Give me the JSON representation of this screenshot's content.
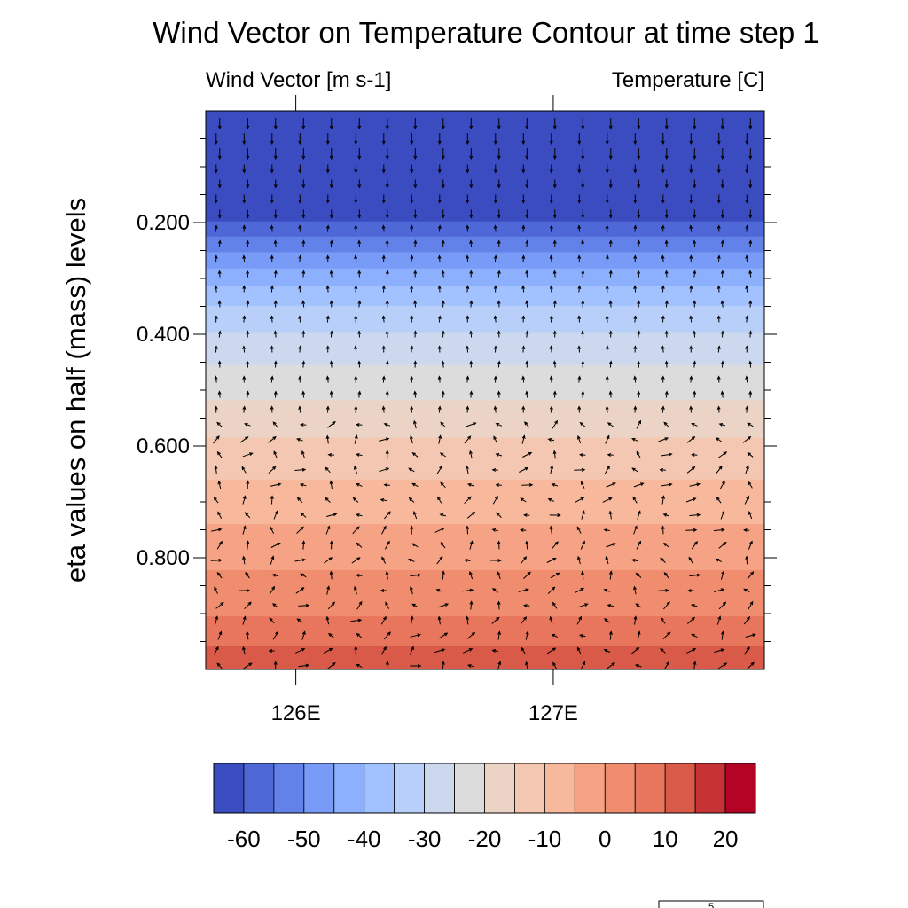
{
  "chart_data": {
    "type": "contour",
    "title": "Wind Vector on Temperature Contour at time step 1",
    "left_subtitle": "Wind Vector [m s-1]",
    "right_subtitle": "Temperature [C]",
    "ylabel": "eta values on half (mass) levels",
    "xlabel": "",
    "x_ticks": [
      {
        "value": 126.0,
        "label": "126E"
      },
      {
        "value": 127.0,
        "label": "127E"
      }
    ],
    "x_range": [
      125.65,
      127.82
    ],
    "y_ticks": [
      {
        "value": 0.2,
        "label": "0.200"
      },
      {
        "value": 0.4,
        "label": "0.400"
      },
      {
        "value": 0.6,
        "label": "0.600"
      },
      {
        "value": 0.8,
        "label": "0.800"
      }
    ],
    "y_range": [
      0.0,
      1.0
    ],
    "y_axis_reversed": true,
    "contour_levels": [
      -65,
      -60,
      -55,
      -50,
      -45,
      -40,
      -35,
      -30,
      -25,
      -20,
      -15,
      -10,
      -5,
      0,
      5,
      10,
      15,
      20,
      25
    ],
    "colorbar_labels": [
      {
        "value": -60,
        "label": "-60"
      },
      {
        "value": -50,
        "label": "-50"
      },
      {
        "value": -40,
        "label": "-40"
      },
      {
        "value": -30,
        "label": "-30"
      },
      {
        "value": -20,
        "label": "-20"
      },
      {
        "value": -10,
        "label": "-10"
      },
      {
        "value": 0,
        "label": "0"
      },
      {
        "value": 10,
        "label": "10"
      },
      {
        "value": 20,
        "label": "20"
      }
    ],
    "colormap": [
      "#3b4cc0",
      "#4e68d8",
      "#6282ea",
      "#779bf6",
      "#8db0fe",
      "#a2c1ff",
      "#b8d0f9",
      "#cbd8ee",
      "#dddcdc",
      "#ebd3c6",
      "#f3c7b1",
      "#f7b89c",
      "#f6a385",
      "#f18d6f",
      "#e8765c",
      "#da5a49",
      "#c53334",
      "#b40426"
    ],
    "temperature_bands": [
      {
        "eta_top": 0.0,
        "eta_bottom": 0.198,
        "color_index": 0
      },
      {
        "eta_top": 0.198,
        "eta_bottom": 0.225,
        "color_index": 1
      },
      {
        "eta_top": 0.225,
        "eta_bottom": 0.253,
        "color_index": 2
      },
      {
        "eta_top": 0.253,
        "eta_bottom": 0.282,
        "color_index": 3
      },
      {
        "eta_top": 0.282,
        "eta_bottom": 0.313,
        "color_index": 4
      },
      {
        "eta_top": 0.313,
        "eta_bottom": 0.349,
        "color_index": 5
      },
      {
        "eta_top": 0.349,
        "eta_bottom": 0.396,
        "color_index": 6
      },
      {
        "eta_top": 0.396,
        "eta_bottom": 0.455,
        "color_index": 7
      },
      {
        "eta_top": 0.455,
        "eta_bottom": 0.518,
        "color_index": 8
      },
      {
        "eta_top": 0.518,
        "eta_bottom": 0.585,
        "color_index": 9
      },
      {
        "eta_top": 0.585,
        "eta_bottom": 0.66,
        "color_index": 10
      },
      {
        "eta_top": 0.66,
        "eta_bottom": 0.74,
        "color_index": 11
      },
      {
        "eta_top": 0.74,
        "eta_bottom": 0.822,
        "color_index": 12
      },
      {
        "eta_top": 0.822,
        "eta_bottom": 0.905,
        "color_index": 13
      },
      {
        "eta_top": 0.905,
        "eta_bottom": 0.958,
        "color_index": 14
      },
      {
        "eta_top": 0.958,
        "eta_bottom": 1.0,
        "color_index": 15
      }
    ],
    "wind_vectors": {
      "columns": 20,
      "direction_by_eta": [
        {
          "eta_max": 0.1,
          "direction": "down"
        },
        {
          "eta_max": 0.2,
          "direction": "down"
        },
        {
          "eta_max": 0.55,
          "direction": "up"
        },
        {
          "eta_max": 1.0,
          "direction": "mixed"
        }
      ]
    },
    "reference_vector_label": "5",
    "colors": {
      "vector": "#000000",
      "frame": "#000000",
      "background": "#ffffff"
    }
  }
}
